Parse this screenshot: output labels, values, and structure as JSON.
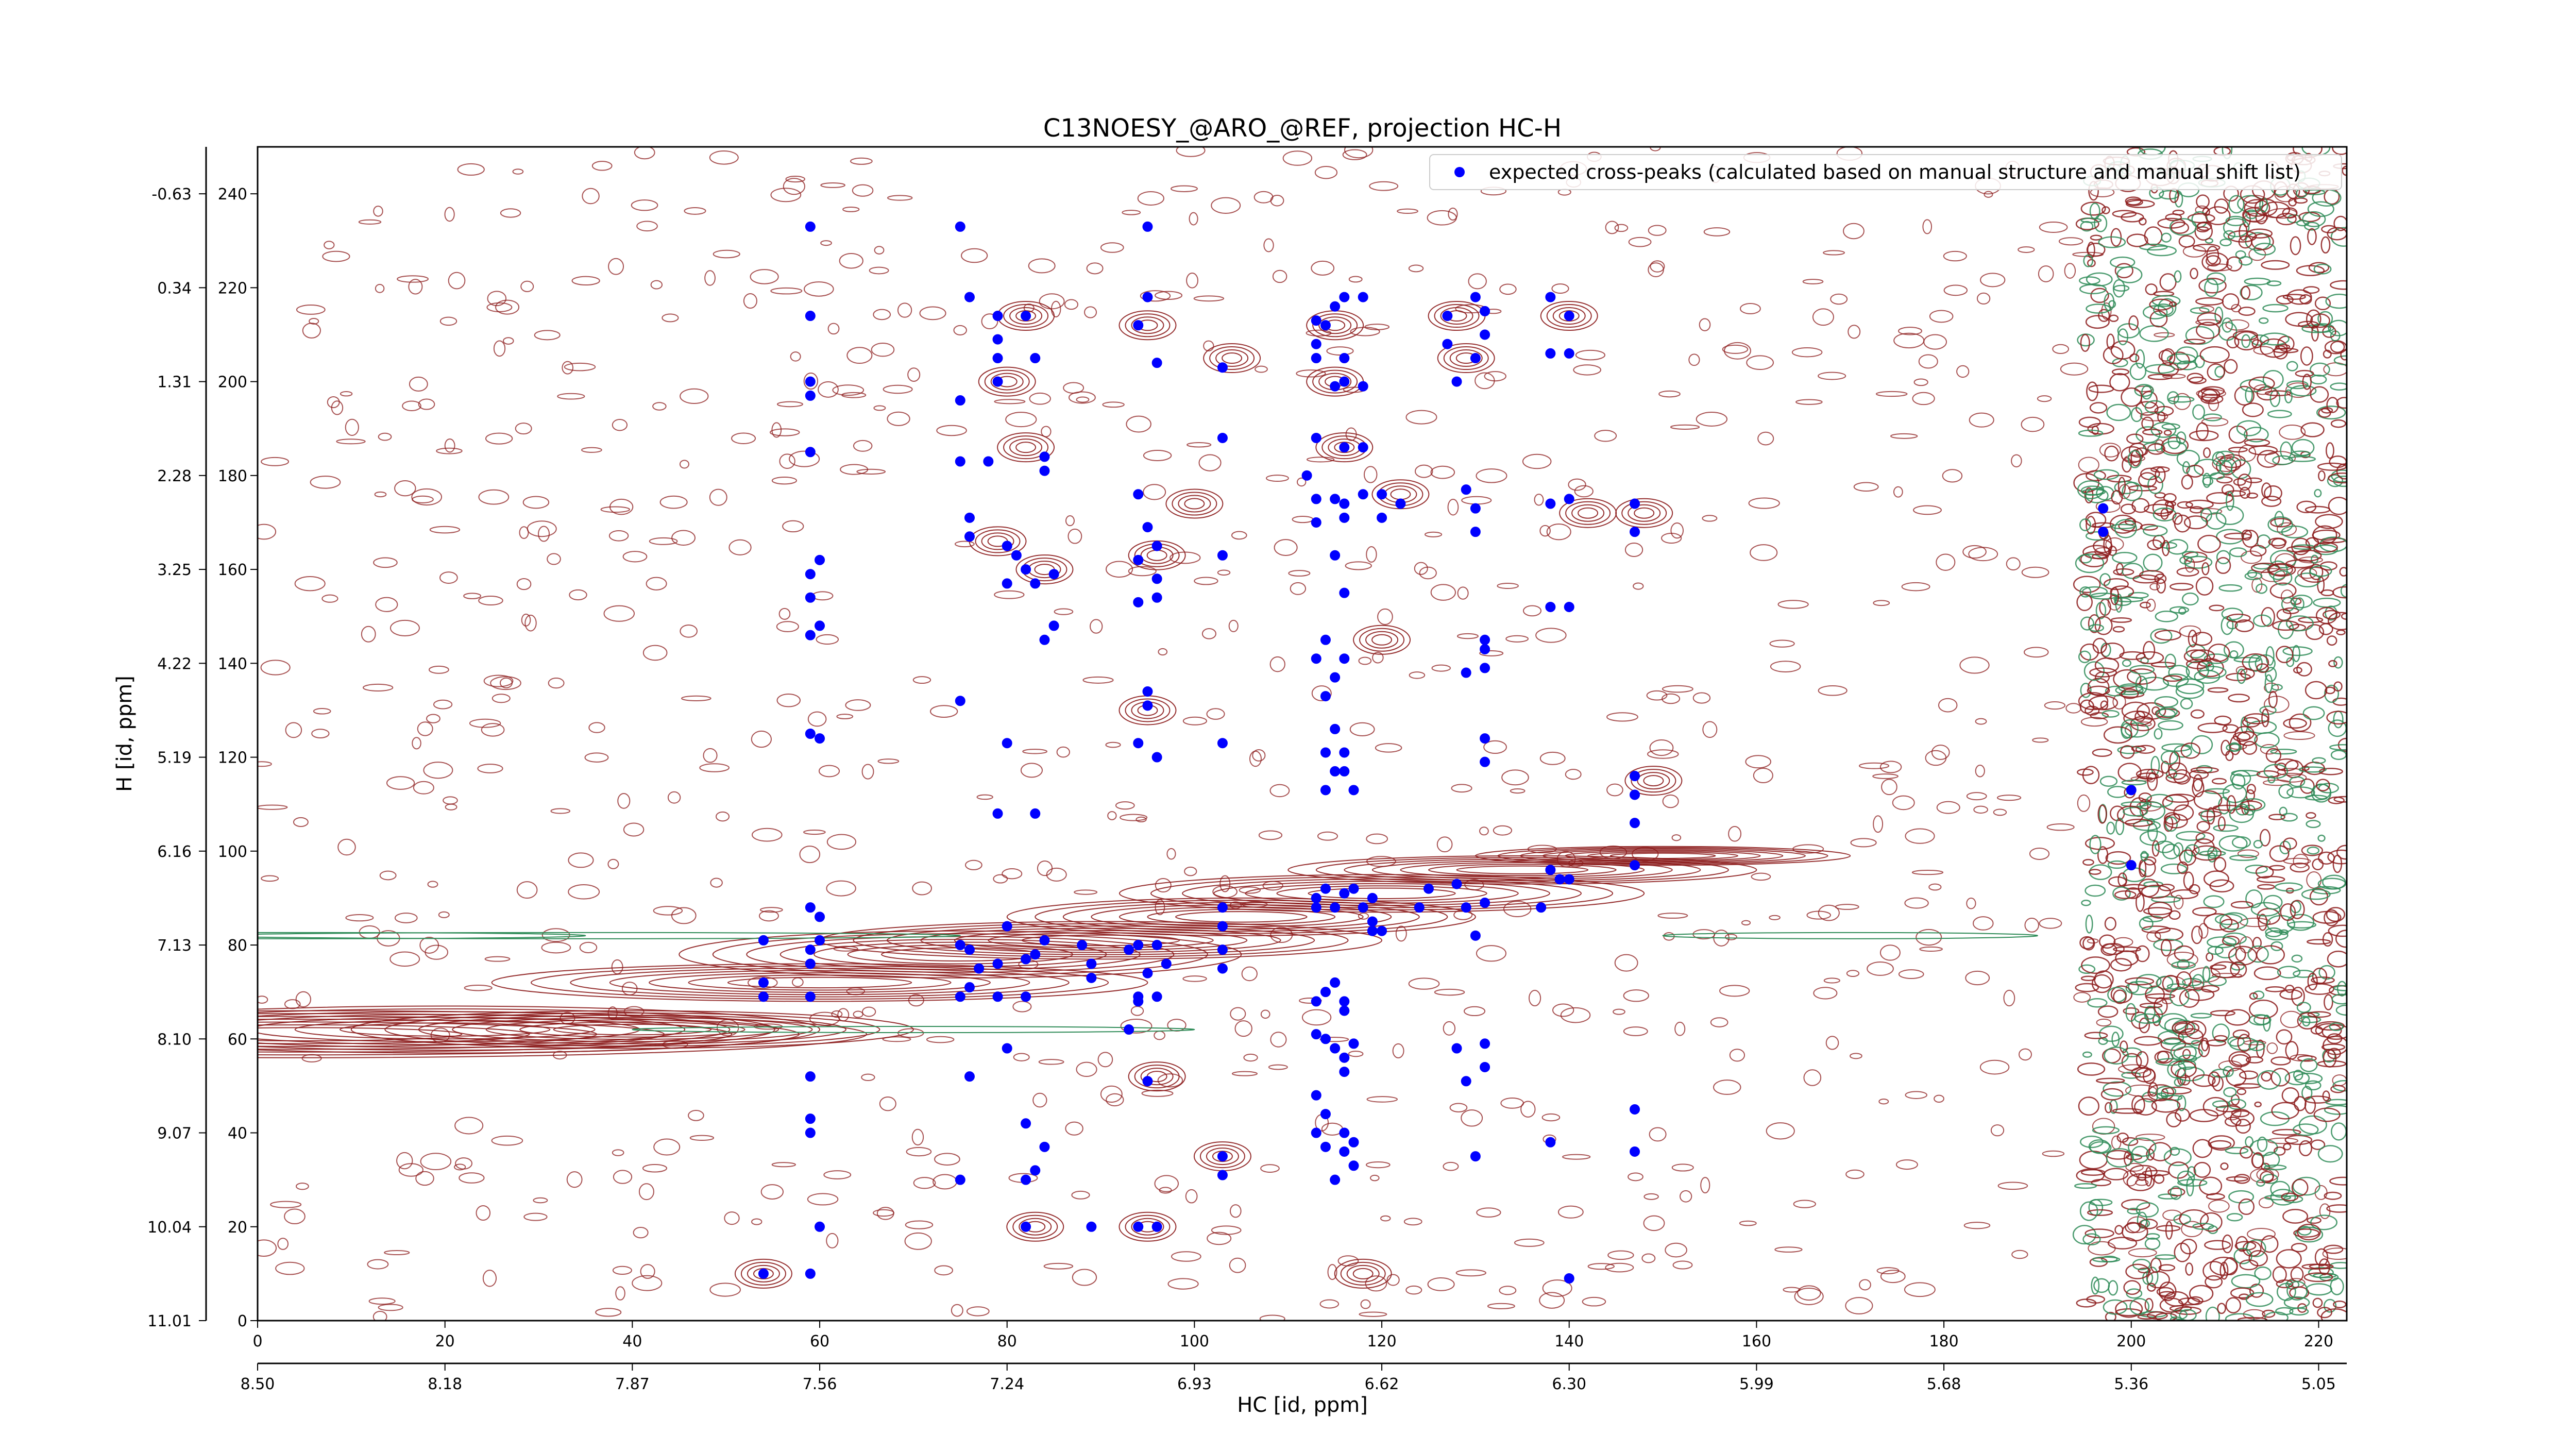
{
  "chart_data": {
    "type": "scatter",
    "title": "C13NOESY_@ARO_@REF, projection HC-H",
    "xlabel": "HC [id, ppm]",
    "ylabel": "H [id, ppm]",
    "xlim": [
      0,
      223
    ],
    "ylim": [
      0,
      250
    ],
    "x_ticks_index": [
      "0",
      "20",
      "40",
      "60",
      "80",
      "100",
      "120",
      "140",
      "160",
      "180",
      "200",
      "220"
    ],
    "x_ticks_ppm": [
      "8.50",
      "8.18",
      "7.87",
      "7.56",
      "7.24",
      "6.93",
      "6.62",
      "6.30",
      "5.99",
      "5.68",
      "5.36",
      "5.05"
    ],
    "y_ticks_index": [
      "0",
      "20",
      "40",
      "60",
      "80",
      "100",
      "120",
      "140",
      "160",
      "180",
      "200",
      "220",
      "240"
    ],
    "y_ticks_ppm": [
      "11.01",
      "10.04",
      "9.07",
      "8.10",
      "7.13",
      "6.16",
      "5.19",
      "4.22",
      "3.25",
      "2.28",
      "1.31",
      "0.34",
      "-0.63"
    ],
    "legend": {
      "position": "top-right"
    },
    "grid": false,
    "colors": {
      "marker": "#0000ff",
      "positive_contour": "#8b1a1a",
      "negative_contour": "#2e8b57",
      "axis": "#000000"
    },
    "series": [
      {
        "name": "expected cross-peaks (calculated based on manual structure and manual shift list)",
        "points": [
          [
            59,
            233
          ],
          [
            59,
            214
          ],
          [
            59,
            197
          ],
          [
            59,
            200
          ],
          [
            59,
            185
          ],
          [
            59,
            159
          ],
          [
            60,
            162
          ],
          [
            59,
            154
          ],
          [
            60,
            148
          ],
          [
            59,
            146
          ],
          [
            59,
            125
          ],
          [
            60,
            124
          ],
          [
            75,
            233
          ],
          [
            76,
            218
          ],
          [
            79,
            214
          ],
          [
            82,
            214
          ],
          [
            79,
            209
          ],
          [
            79,
            205
          ],
          [
            83,
            205
          ],
          [
            79,
            200
          ],
          [
            75,
            196
          ],
          [
            75,
            183
          ],
          [
            78,
            183
          ],
          [
            84,
            184
          ],
          [
            84,
            181
          ],
          [
            76,
            171
          ],
          [
            80,
            165
          ],
          [
            76,
            167
          ],
          [
            81,
            163
          ],
          [
            80,
            157
          ],
          [
            82,
            160
          ],
          [
            85,
            159
          ],
          [
            83,
            157
          ],
          [
            84,
            145
          ],
          [
            85,
            148
          ],
          [
            75,
            132
          ],
          [
            80,
            123
          ],
          [
            79,
            108
          ],
          [
            83,
            108
          ],
          [
            95,
            233
          ],
          [
            95,
            218
          ],
          [
            94,
            212
          ],
          [
            96,
            204
          ],
          [
            103,
            203
          ],
          [
            103,
            188
          ],
          [
            94,
            176
          ],
          [
            95,
            169
          ],
          [
            96,
            165
          ],
          [
            94,
            162
          ],
          [
            96,
            158
          ],
          [
            94,
            153
          ],
          [
            96,
            154
          ],
          [
            103,
            163
          ],
          [
            95,
            134
          ],
          [
            95,
            131
          ],
          [
            94,
            123
          ],
          [
            96,
            120
          ],
          [
            103,
            123
          ],
          [
            113,
            213
          ],
          [
            113,
            208
          ],
          [
            114,
            212
          ],
          [
            115,
            216
          ],
          [
            116,
            218
          ],
          [
            118,
            218
          ],
          [
            113,
            205
          ],
          [
            116,
            205
          ],
          [
            115,
            199
          ],
          [
            116,
            200
          ],
          [
            118,
            199
          ],
          [
            113,
            188
          ],
          [
            116,
            186
          ],
          [
            118,
            186
          ],
          [
            112,
            180
          ],
          [
            113,
            175
          ],
          [
            115,
            175
          ],
          [
            116,
            174
          ],
          [
            118,
            176
          ],
          [
            120,
            176
          ],
          [
            116,
            171
          ],
          [
            113,
            170
          ],
          [
            120,
            171
          ],
          [
            122,
            174
          ],
          [
            115,
            163
          ],
          [
            116,
            155
          ],
          [
            114,
            145
          ],
          [
            113,
            141
          ],
          [
            115,
            137
          ],
          [
            116,
            141
          ],
          [
            114,
            133
          ],
          [
            115,
            126
          ],
          [
            116,
            121
          ],
          [
            114,
            121
          ],
          [
            115,
            117
          ],
          [
            116,
            117
          ],
          [
            114,
            113
          ],
          [
            117,
            113
          ],
          [
            127,
            214
          ],
          [
            127,
            208
          ],
          [
            130,
            218
          ],
          [
            131,
            215
          ],
          [
            131,
            210
          ],
          [
            130,
            205
          ],
          [
            128,
            200
          ],
          [
            129,
            177
          ],
          [
            130,
            173
          ],
          [
            130,
            168
          ],
          [
            131,
            143
          ],
          [
            131,
            139
          ],
          [
            131,
            145
          ],
          [
            129,
            138
          ],
          [
            131,
            124
          ],
          [
            131,
            119
          ],
          [
            138,
            218
          ],
          [
            140,
            214
          ],
          [
            138,
            206
          ],
          [
            140,
            206
          ],
          [
            140,
            175
          ],
          [
            138,
            174
          ],
          [
            138,
            152
          ],
          [
            140,
            152
          ],
          [
            147,
            174
          ],
          [
            147,
            168
          ],
          [
            147,
            116
          ],
          [
            147,
            112
          ],
          [
            147,
            106
          ],
          [
            147,
            97
          ],
          [
            197,
            173
          ],
          [
            197,
            168
          ],
          [
            200,
            113
          ],
          [
            200,
            97
          ],
          [
            54,
            81
          ],
          [
            54,
            72
          ],
          [
            54,
            69
          ],
          [
            59,
            88
          ],
          [
            59,
            79
          ],
          [
            59,
            76
          ],
          [
            59,
            69
          ],
          [
            60,
            81
          ],
          [
            60,
            86
          ],
          [
            75,
            80
          ],
          [
            76,
            79
          ],
          [
            77,
            75
          ],
          [
            79,
            76
          ],
          [
            80,
            84
          ],
          [
            82,
            77
          ],
          [
            83,
            78
          ],
          [
            84,
            81
          ],
          [
            88,
            80
          ],
          [
            89,
            73
          ],
          [
            89,
            76
          ],
          [
            93,
            79
          ],
          [
            94,
            80
          ],
          [
            96,
            80
          ],
          [
            97,
            76
          ],
          [
            95,
            74
          ],
          [
            94,
            69
          ],
          [
            75,
            69
          ],
          [
            76,
            71
          ],
          [
            79,
            69
          ],
          [
            82,
            69
          ],
          [
            94,
            68
          ],
          [
            96,
            69
          ],
          [
            93,
            62
          ],
          [
            103,
            88
          ],
          [
            103,
            84
          ],
          [
            103,
            79
          ],
          [
            103,
            75
          ],
          [
            113,
            88
          ],
          [
            113,
            90
          ],
          [
            114,
            92
          ],
          [
            115,
            88
          ],
          [
            116,
            91
          ],
          [
            117,
            92
          ],
          [
            118,
            88
          ],
          [
            119,
            85
          ],
          [
            120,
            83
          ],
          [
            124,
            88
          ],
          [
            125,
            92
          ],
          [
            128,
            93
          ],
          [
            129,
            88
          ],
          [
            131,
            89
          ],
          [
            130,
            82
          ],
          [
            138,
            96
          ],
          [
            139,
            94
          ],
          [
            140,
            94
          ],
          [
            137,
            88
          ],
          [
            114,
            70
          ],
          [
            115,
            72
          ],
          [
            116,
            68
          ],
          [
            113,
            61
          ],
          [
            114,
            60
          ],
          [
            115,
            58
          ],
          [
            116,
            56
          ],
          [
            117,
            59
          ],
          [
            116,
            53
          ],
          [
            113,
            48
          ],
          [
            114,
            44
          ],
          [
            116,
            40
          ],
          [
            117,
            38
          ],
          [
            113,
            40
          ],
          [
            114,
            37
          ],
          [
            116,
            36
          ],
          [
            117,
            33
          ],
          [
            115,
            30
          ],
          [
            119,
            90
          ],
          [
            119,
            83
          ],
          [
            113,
            68
          ],
          [
            116,
            66
          ],
          [
            59,
            52
          ],
          [
            59,
            43
          ],
          [
            59,
            40
          ],
          [
            60,
            20
          ],
          [
            54,
            10
          ],
          [
            59,
            10
          ],
          [
            76,
            52
          ],
          [
            80,
            58
          ],
          [
            82,
            42
          ],
          [
            83,
            32
          ],
          [
            75,
            30
          ],
          [
            82,
            30
          ],
          [
            84,
            37
          ],
          [
            82,
            20
          ],
          [
            89,
            20
          ],
          [
            94,
            20
          ],
          [
            96,
            20
          ],
          [
            95,
            51
          ],
          [
            103,
            35
          ],
          [
            103,
            31
          ],
          [
            128,
            58
          ],
          [
            131,
            54
          ],
          [
            129,
            51
          ],
          [
            130,
            35
          ],
          [
            131,
            59
          ],
          [
            138,
            38
          ],
          [
            140,
            9
          ],
          [
            147,
            45
          ],
          [
            147,
            36
          ]
        ]
      }
    ]
  }
}
